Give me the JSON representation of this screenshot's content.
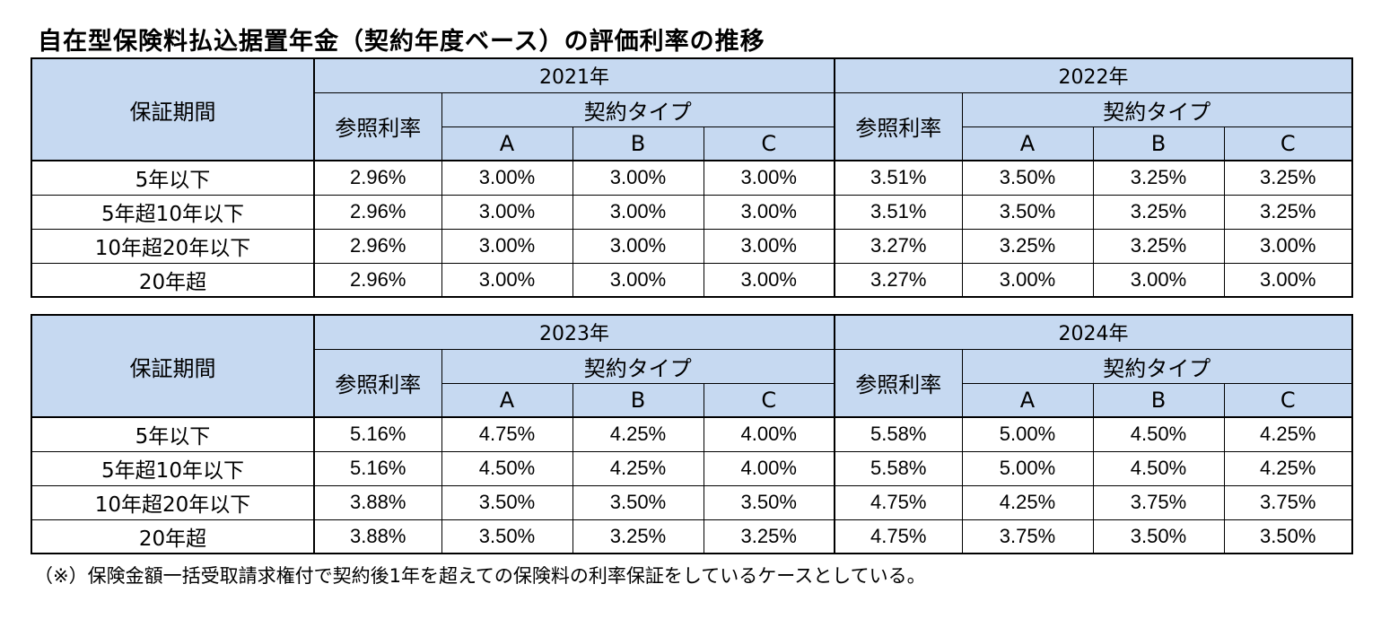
{
  "title": "自在型保険料払込据置年金（契約年度ベース）の評価利率の推移",
  "note": "（※）保険金額一括受取請求権付で契約後1年を超えての保険料の利率保証をしているケースとしている。",
  "chart_data": {
    "type": "table",
    "header": {
      "period_col": "保証期間",
      "ref_rate": "参照利率",
      "contract_type": "契約タイプ",
      "types": [
        "A",
        "B",
        "C"
      ]
    },
    "tables": [
      {
        "years": [
          "2021年",
          "2022年"
        ],
        "rows": [
          {
            "period": "5年以下",
            "cells": [
              "2.96%",
              "3.00%",
              "3.00%",
              "3.00%",
              "3.51%",
              "3.50%",
              "3.25%",
              "3.25%"
            ]
          },
          {
            "period": "5年超10年以下",
            "cells": [
              "2.96%",
              "3.00%",
              "3.00%",
              "3.00%",
              "3.51%",
              "3.50%",
              "3.25%",
              "3.25%"
            ]
          },
          {
            "period": "10年超20年以下",
            "cells": [
              "2.96%",
              "3.00%",
              "3.00%",
              "3.00%",
              "3.27%",
              "3.25%",
              "3.25%",
              "3.00%"
            ]
          },
          {
            "period": "20年超",
            "cells": [
              "2.96%",
              "3.00%",
              "3.00%",
              "3.00%",
              "3.27%",
              "3.00%",
              "3.00%",
              "3.00%"
            ]
          }
        ]
      },
      {
        "years": [
          "2023年",
          "2024年"
        ],
        "rows": [
          {
            "period": "5年以下",
            "cells": [
              "5.16%",
              "4.75%",
              "4.25%",
              "4.00%",
              "5.58%",
              "5.00%",
              "4.50%",
              "4.25%"
            ]
          },
          {
            "period": "5年超10年以下",
            "cells": [
              "5.16%",
              "4.50%",
              "4.25%",
              "4.00%",
              "5.58%",
              "5.00%",
              "4.50%",
              "4.25%"
            ]
          },
          {
            "period": "10年超20年以下",
            "cells": [
              "3.88%",
              "3.50%",
              "3.50%",
              "3.50%",
              "4.75%",
              "4.25%",
              "3.75%",
              "3.75%"
            ]
          },
          {
            "period": "20年超",
            "cells": [
              "3.88%",
              "3.50%",
              "3.25%",
              "3.25%",
              "4.75%",
              "3.75%",
              "3.50%",
              "3.50%"
            ]
          }
        ]
      }
    ]
  }
}
